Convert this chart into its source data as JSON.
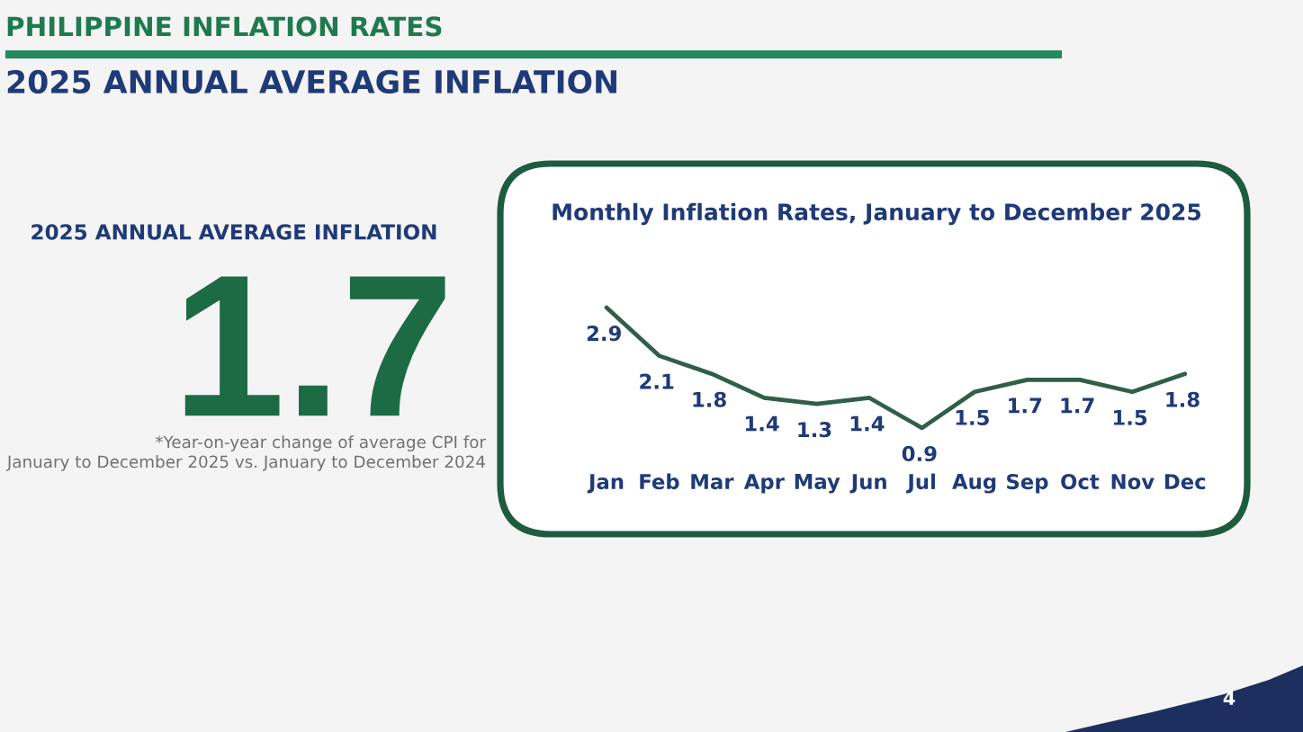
{
  "chart_data": [
    {
      "type": "other",
      "title": "PHILIPPINE INFLATION RATES",
      "subtitle": "2025 ANNUAL AVERAGE INFLATION",
      "annotations": [
        "2025 ANNUAL AVERAGE INFLATION",
        "1.7",
        "*Year-on-year change of average CPI for\nJanuary to December 2025 vs. January to December 2024",
        "4"
      ]
    },
    {
      "type": "line",
      "title": "Monthly Inflation Rates, January to December 2025",
      "categories": [
        "Jan",
        "Feb",
        "Mar",
        "Apr",
        "May",
        "Jun",
        "Jul",
        "Aug",
        "Sep",
        "Oct",
        "Nov",
        "Dec"
      ],
      "series": [
        {
          "color": "#2f5f47",
          "values": [
            2.9,
            2.1,
            1.8,
            1.4,
            1.3,
            1.4,
            0.9,
            1.5,
            1.7,
            1.7,
            1.5,
            1.8
          ]
        }
      ],
      "data_labels": true,
      "line_style": "solid",
      "tick_labels": "x"
    }
  ]
}
